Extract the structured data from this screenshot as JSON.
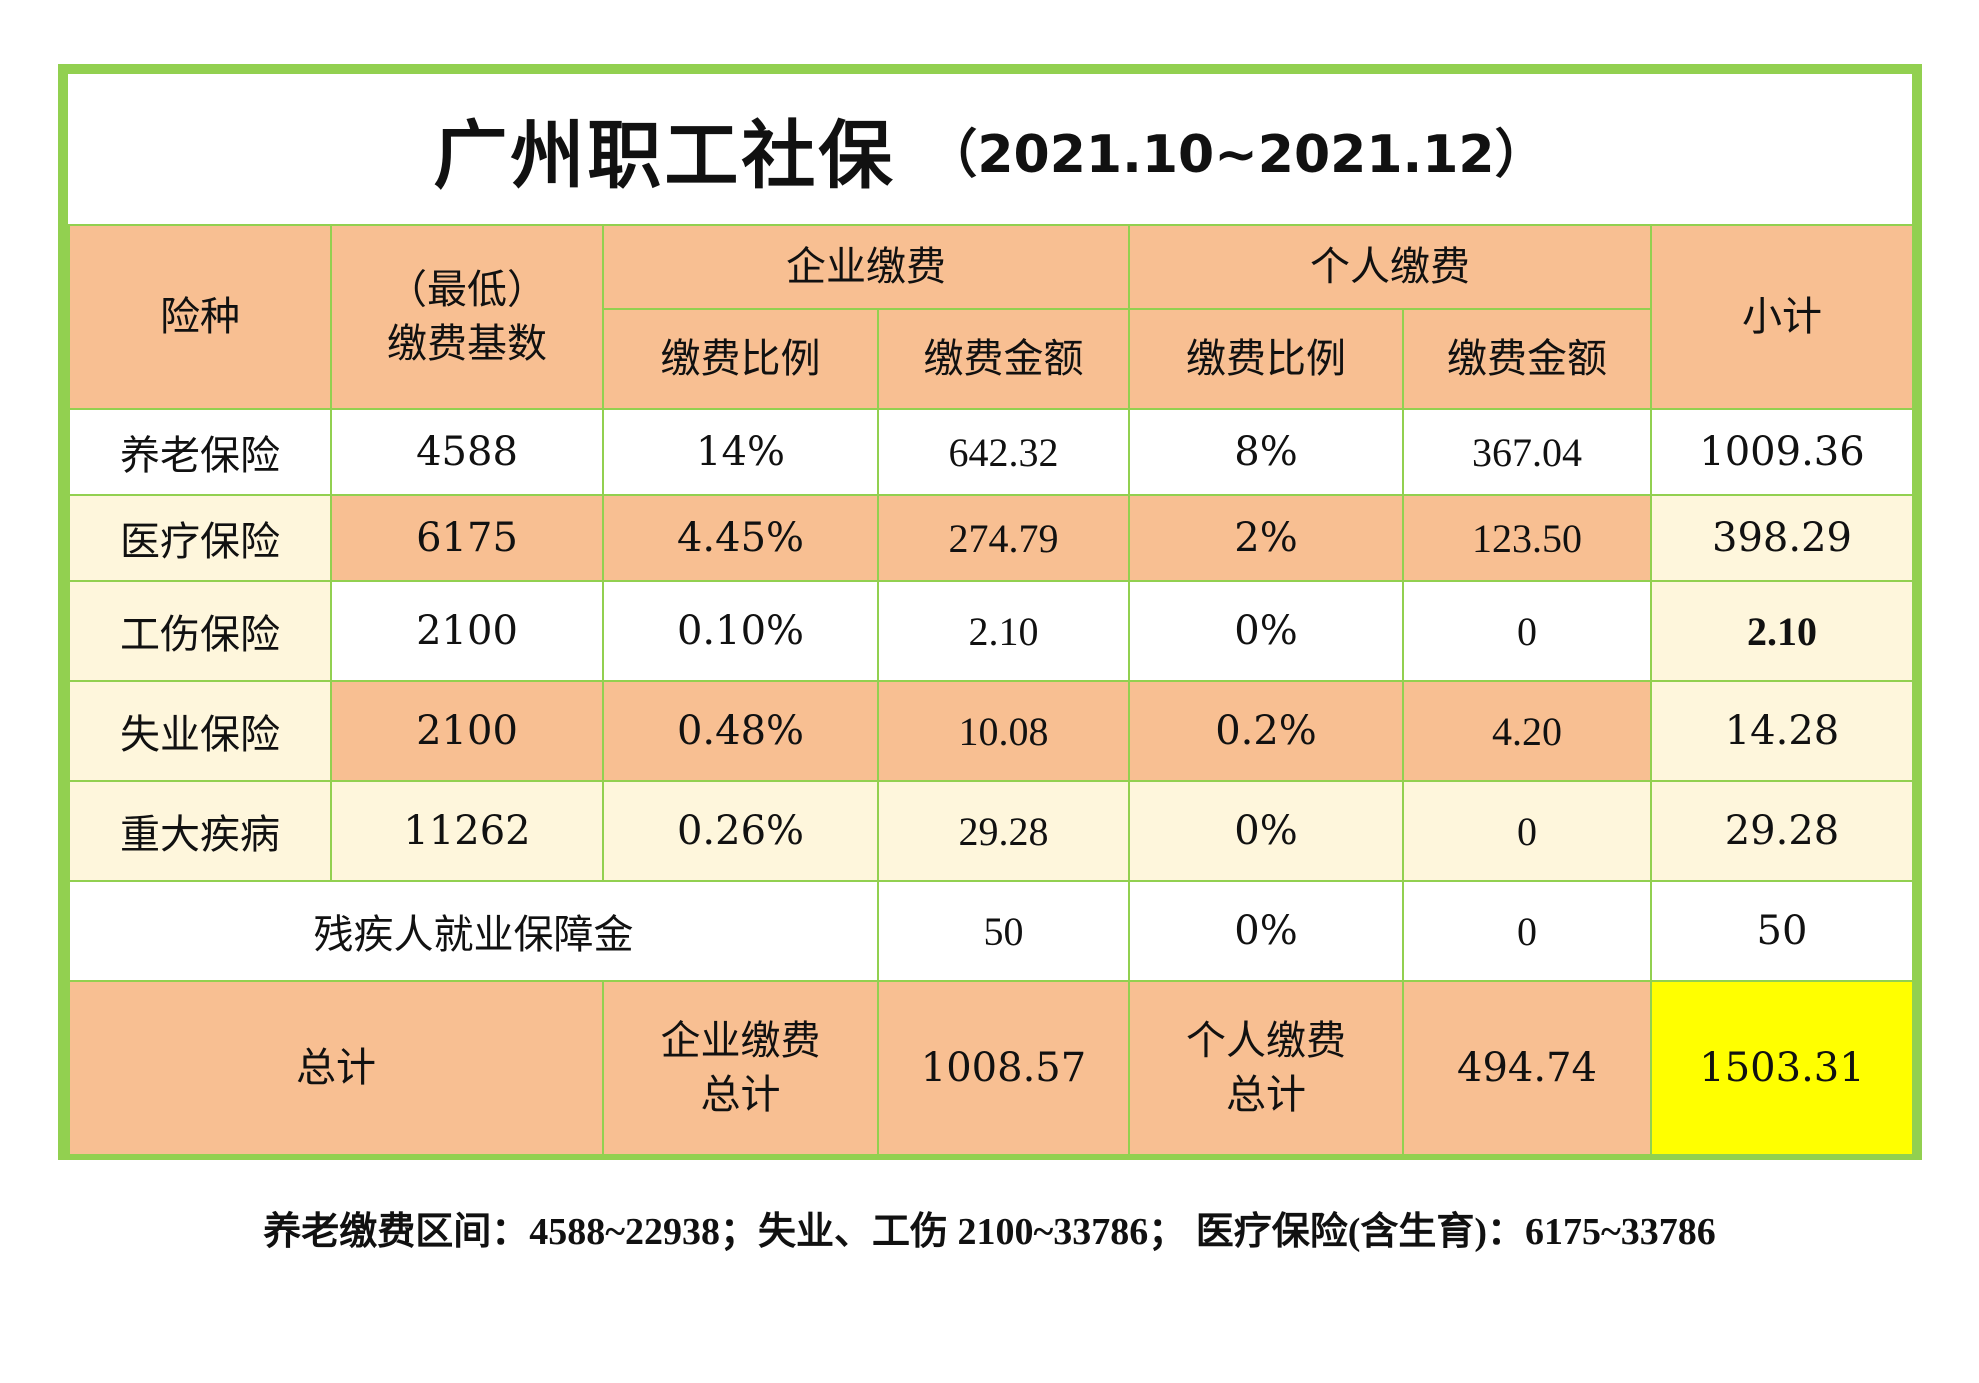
{
  "title": {
    "main": "广州职工社保",
    "period": "（2021.10~2021.12）"
  },
  "header": {
    "type": "险种",
    "base_line1": "（最低）",
    "base_line2": "缴费基数",
    "enterprise": "企业缴费",
    "personal": "个人缴费",
    "ratio": "缴费比例",
    "amount": "缴费金额",
    "subtotal": "小计"
  },
  "rows": [
    {
      "name": "养老保险",
      "base": "4588",
      "ent_ratio": "14%",
      "ent_amount": "642.32",
      "per_ratio": "8%",
      "per_amount": "367.04",
      "subtotal": "1009.36"
    },
    {
      "name": "医疗保险",
      "base": "6175",
      "ent_ratio": "4.45%",
      "ent_amount": "274.79",
      "per_ratio": "2%",
      "per_amount": "123.50",
      "subtotal": "398.29"
    },
    {
      "name": "工伤保险",
      "base": "2100",
      "ent_ratio": "0.10%",
      "ent_amount": "2.10",
      "per_ratio": "0%",
      "per_amount": "0",
      "subtotal": "2.10"
    },
    {
      "name": "失业保险",
      "base": "2100",
      "ent_ratio": "0.48%",
      "ent_amount": "10.08",
      "per_ratio": "0.2%",
      "per_amount": "4.20",
      "subtotal": "14.28"
    },
    {
      "name": "重大疾病",
      "base": "11262",
      "ent_ratio": "0.26%",
      "ent_amount": "29.28",
      "per_ratio": "0%",
      "per_amount": "0",
      "subtotal": "29.28"
    }
  ],
  "disability": {
    "name": "残疾人就业保障金",
    "ent_amount": "50",
    "per_ratio": "0%",
    "per_amount": "0",
    "subtotal": "50"
  },
  "total": {
    "label": "总计",
    "ent_label_1": "企业缴费",
    "ent_label_2": "总计",
    "ent_total": "1008.57",
    "per_label_1": "个人缴费",
    "per_label_2": "总计",
    "per_total": "494.74",
    "grand_total": "1503.31"
  },
  "note": "养老缴费区间：4588~22938；失业、工伤 2100~33786； 医疗保险(含生育)：6175~33786",
  "colors": {
    "border": "#92d050",
    "header_bg": "#f8bf92",
    "alt_bg": "#fef6dc",
    "highlight": "#ffff00",
    "red": "#c00000"
  }
}
